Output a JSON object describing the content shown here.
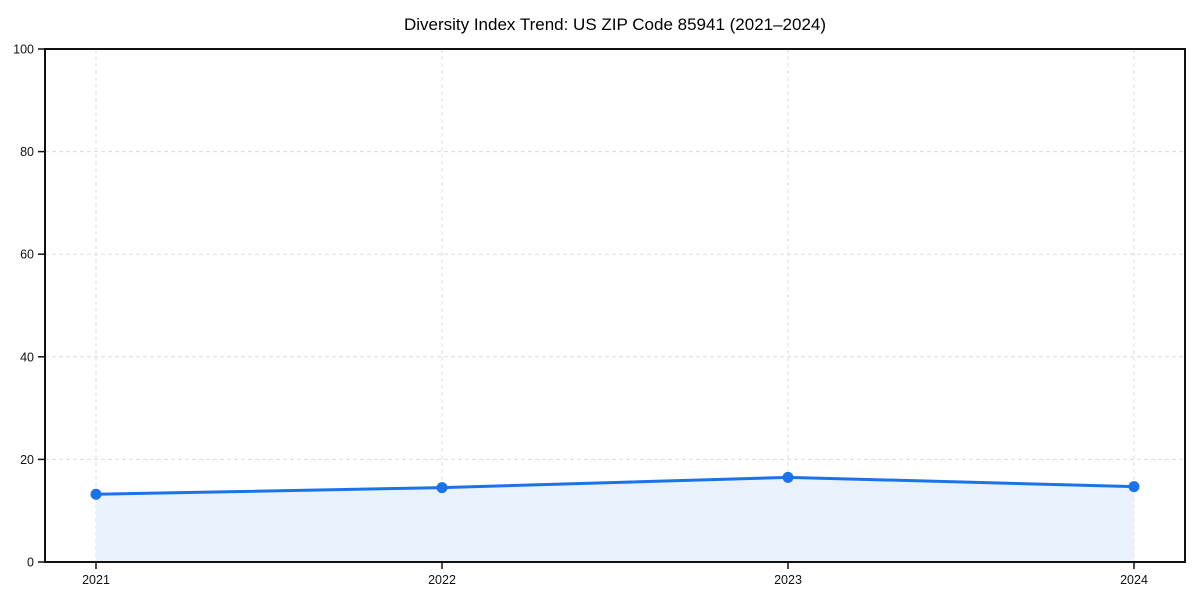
{
  "chart_data": {
    "type": "area",
    "title": "Diversity Index Trend: US ZIP Code 85941 (2021–2024)",
    "categories": [
      "2021",
      "2022",
      "2023",
      "2024"
    ],
    "series": [
      {
        "name": "Diversity Index",
        "values": [
          13.2,
          14.5,
          16.5,
          14.7
        ]
      }
    ],
    "xlabel": "",
    "ylabel": "",
    "ylim": [
      0,
      100
    ],
    "yticks": [
      0,
      20,
      40,
      60,
      80,
      100
    ],
    "grid": "dashed horizontal and vertical gridlines at ticks",
    "legend": "none",
    "marker": "circle",
    "colors": {
      "line": "#1a73e8",
      "marker": "#1a73e8",
      "fill": "#e8f1fc",
      "grid": "#dcdcdc",
      "axis": "#111111",
      "text": "#111111",
      "background": "#ffffff"
    }
  }
}
